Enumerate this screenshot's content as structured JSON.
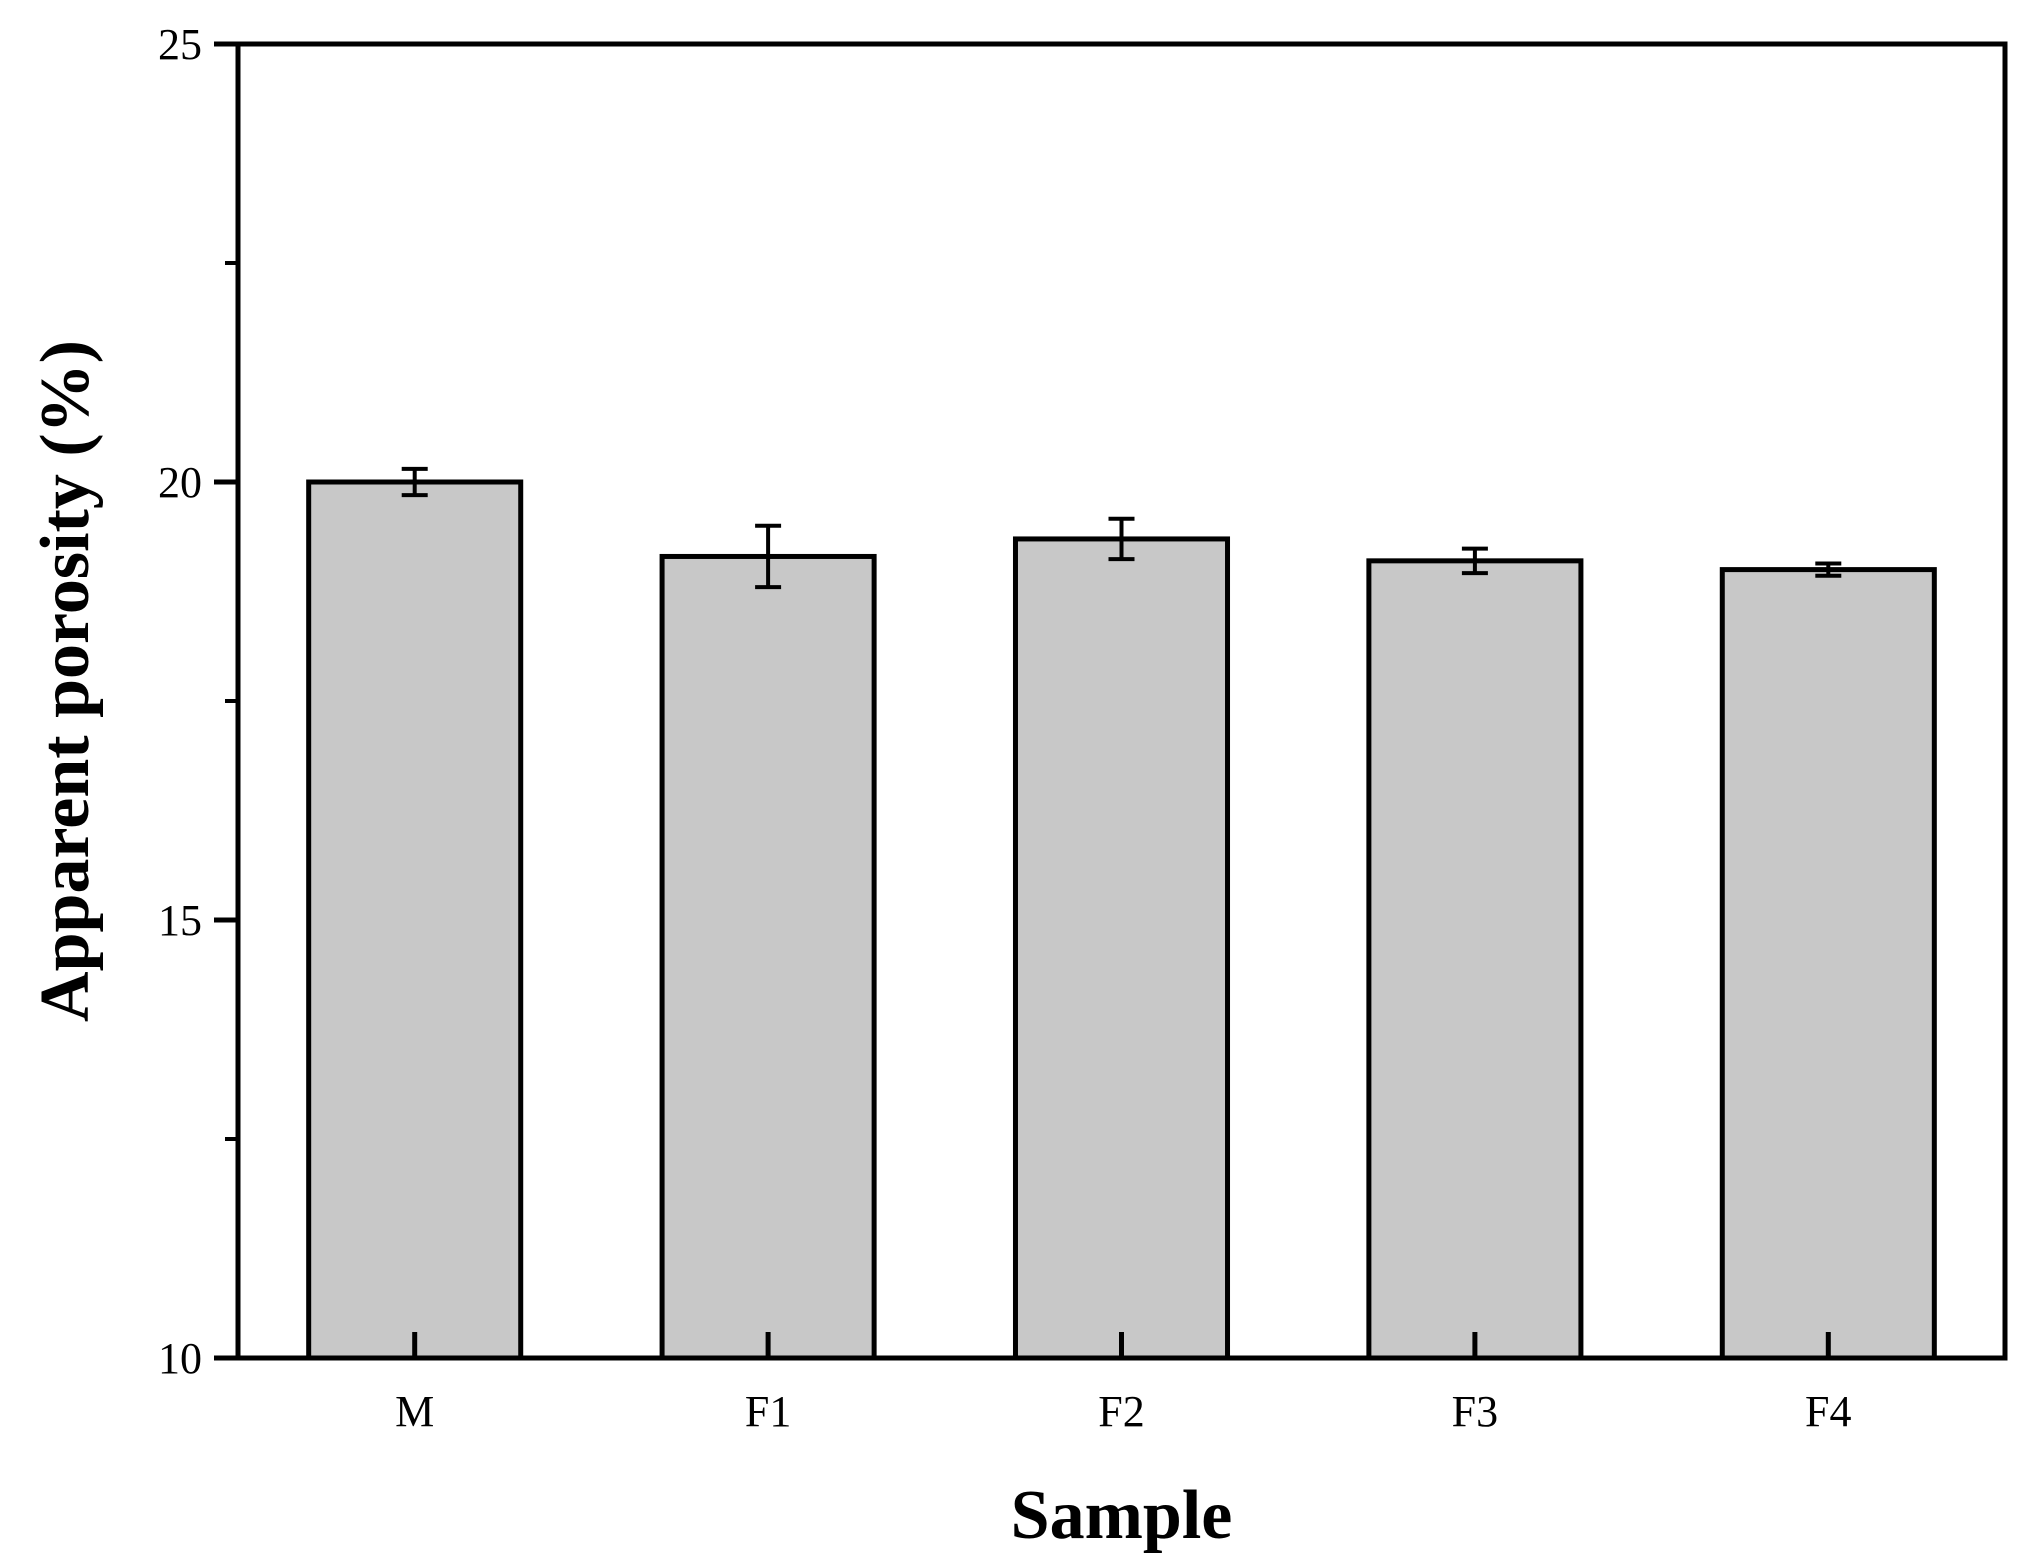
{
  "chart_data": {
    "type": "bar",
    "title": "",
    "xlabel": "Sample",
    "ylabel": "Apparent porosity (%)",
    "categories": [
      "M",
      "F1",
      "F2",
      "F3",
      "F4"
    ],
    "values": [
      20.0,
      19.15,
      19.35,
      19.1,
      19.0
    ],
    "errors": [
      0.15,
      0.35,
      0.23,
      0.14,
      0.07
    ],
    "ylim": [
      10,
      25
    ],
    "yticks": [
      "10",
      "15",
      "20",
      "25"
    ],
    "y_minor_step": 2.5,
    "grid": false,
    "legend": "none",
    "bar_color": "#c8c8c8",
    "edge_color": "#000000"
  }
}
